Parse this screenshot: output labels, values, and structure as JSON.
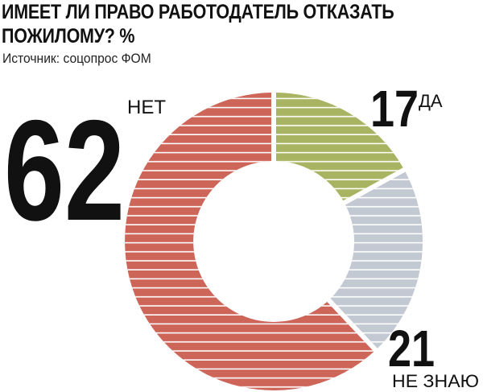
{
  "title": "ИМЕЕТ ЛИ ПРАВО РАБОТОДАТЕЛЬ ОТКАЗАТЬ ПОЖИЛОМУ? %",
  "source": "Источник: соцопрос ФОМ",
  "chart_data": {
    "type": "pie",
    "variant": "donut",
    "slices": [
      {
        "label": "ДА",
        "value": 17,
        "color": "#a9b462"
      },
      {
        "label": "НЕ ЗНАЮ",
        "value": 21,
        "color": "#c3c9d2"
      },
      {
        "label": "НЕТ",
        "value": 62,
        "color": "#cd6559"
      }
    ],
    "value_labels": [
      "17",
      "21",
      "62"
    ],
    "category_labels": [
      "ДА",
      "НЕ ЗНАЮ",
      "НЕТ"
    ]
  }
}
